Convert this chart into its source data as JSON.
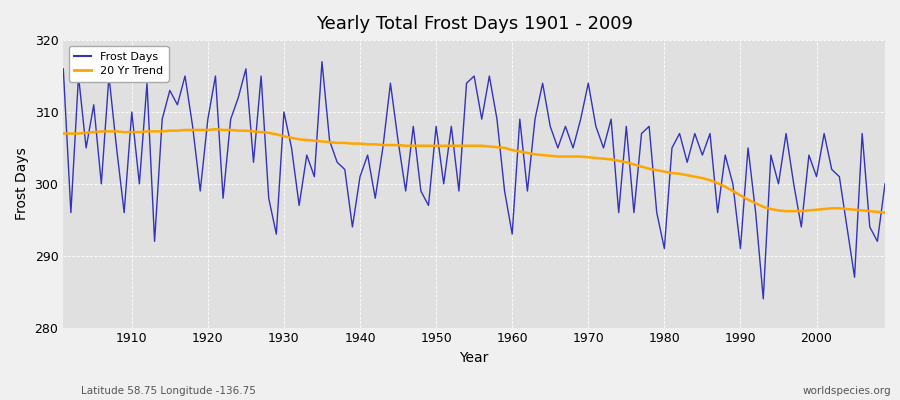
{
  "title": "Yearly Total Frost Days 1901 - 2009",
  "xlabel": "Year",
  "ylabel": "Frost Days",
  "subtitle_left": "Latitude 58.75 Longitude -136.75",
  "subtitle_right": "worldspecies.org",
  "legend_labels": [
    "Frost Days",
    "20 Yr Trend"
  ],
  "line_color": "#3333bb",
  "trend_color": "#FFA500",
  "bg_color": "#f0f0f0",
  "plot_bg_color": "#e0e0e0",
  "ylim": [
    280,
    320
  ],
  "yticks": [
    280,
    290,
    300,
    310,
    320
  ],
  "years": [
    1901,
    1902,
    1903,
    1904,
    1905,
    1906,
    1907,
    1908,
    1909,
    1910,
    1911,
    1912,
    1913,
    1914,
    1915,
    1916,
    1917,
    1918,
    1919,
    1920,
    1921,
    1922,
    1923,
    1924,
    1925,
    1926,
    1927,
    1928,
    1929,
    1930,
    1931,
    1932,
    1933,
    1934,
    1935,
    1936,
    1937,
    1938,
    1939,
    1940,
    1941,
    1942,
    1943,
    1944,
    1945,
    1946,
    1947,
    1948,
    1949,
    1950,
    1951,
    1952,
    1953,
    1954,
    1955,
    1956,
    1957,
    1958,
    1959,
    1960,
    1961,
    1962,
    1963,
    1964,
    1965,
    1966,
    1967,
    1968,
    1969,
    1970,
    1971,
    1972,
    1973,
    1974,
    1975,
    1976,
    1977,
    1978,
    1979,
    1980,
    1981,
    1982,
    1983,
    1984,
    1985,
    1986,
    1987,
    1988,
    1989,
    1990,
    1991,
    1992,
    1993,
    1994,
    1995,
    1996,
    1997,
    1998,
    1999,
    2000,
    2001,
    2002,
    2003,
    2004,
    2005,
    2006,
    2007,
    2008,
    2009
  ],
  "frost_days": [
    316,
    296,
    315,
    305,
    311,
    300,
    315,
    305,
    296,
    310,
    300,
    314,
    292,
    309,
    313,
    311,
    315,
    308,
    299,
    309,
    315,
    298,
    309,
    312,
    316,
    303,
    315,
    298,
    293,
    310,
    305,
    297,
    304,
    301,
    317,
    306,
    303,
    302,
    294,
    301,
    304,
    298,
    305,
    314,
    306,
    299,
    308,
    299,
    297,
    308,
    300,
    308,
    299,
    314,
    315,
    309,
    315,
    309,
    299,
    293,
    309,
    299,
    309,
    314,
    308,
    305,
    308,
    305,
    309,
    314,
    308,
    305,
    309,
    296,
    308,
    296,
    307,
    308,
    296,
    291,
    305,
    307,
    303,
    307,
    304,
    307,
    296,
    304,
    300,
    291,
    305,
    296,
    284,
    304,
    300,
    307,
    300,
    294,
    304,
    301,
    307,
    302,
    301,
    294,
    287,
    307,
    294,
    292,
    300
  ],
  "trend": [
    307.0,
    307.0,
    307.0,
    307.1,
    307.2,
    307.3,
    307.3,
    307.3,
    307.2,
    307.2,
    307.2,
    307.3,
    307.3,
    307.3,
    307.4,
    307.4,
    307.5,
    307.5,
    307.5,
    307.5,
    307.6,
    307.5,
    307.5,
    307.4,
    307.4,
    307.3,
    307.2,
    307.1,
    306.9,
    306.6,
    306.4,
    306.2,
    306.1,
    306.0,
    305.9,
    305.8,
    305.7,
    305.7,
    305.6,
    305.6,
    305.5,
    305.5,
    305.4,
    305.4,
    305.4,
    305.3,
    305.3,
    305.3,
    305.3,
    305.3,
    305.3,
    305.3,
    305.3,
    305.3,
    305.3,
    305.3,
    305.2,
    305.1,
    305.0,
    304.7,
    304.5,
    304.3,
    304.1,
    304.0,
    303.9,
    303.8,
    303.8,
    303.8,
    303.8,
    303.7,
    303.6,
    303.5,
    303.4,
    303.2,
    303.0,
    302.7,
    302.4,
    302.1,
    301.9,
    301.7,
    301.5,
    301.4,
    301.2,
    301.0,
    300.8,
    300.5,
    300.1,
    299.6,
    299.0,
    298.4,
    297.8,
    297.3,
    296.8,
    296.5,
    296.3,
    296.2,
    296.2,
    296.2,
    296.3,
    296.4,
    296.5,
    296.6,
    296.6,
    296.5,
    296.4,
    296.3,
    296.2,
    296.1,
    296.0
  ]
}
